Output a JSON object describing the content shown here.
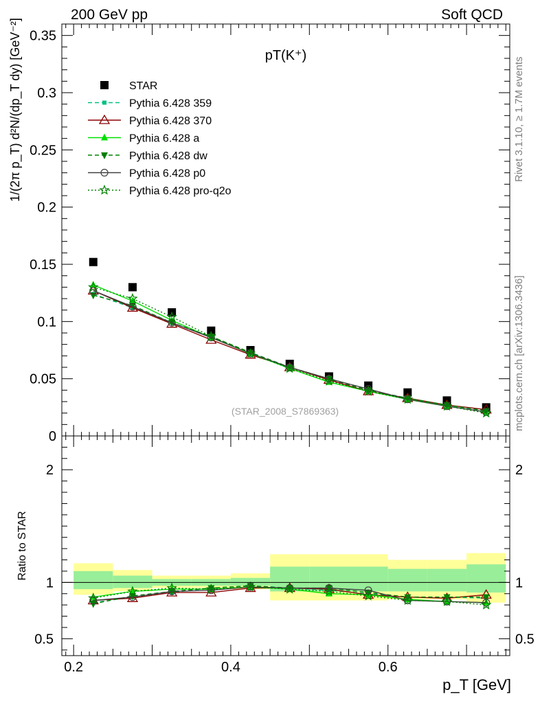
{
  "header": {
    "left": "200 GeV pp",
    "right": "Soft QCD",
    "plot_title": "pT(K⁺)",
    "watermark": "(STAR_2008_S7869363)",
    "side_top": "Rivet 3.1.10, ≥ 1.7M events",
    "side_bottom": "mcplots.cern.ch [arXiv:1306.3436]"
  },
  "axes": {
    "ylabel_top": "1/(2π p_T) d²N/(dp_T dy) [GeV⁻²]",
    "ylabel_ratio": "Ratio to STAR",
    "xlabel": "p_T [GeV]"
  },
  "colors": {
    "star": "#000000",
    "p359": "#00c080",
    "p370": "#8b0000",
    "pa": "#00e000",
    "pdw": "#008000",
    "pp0": "#404040",
    "pq2o": "#008000",
    "band_outer": "#ffff99",
    "band_inner": "#99ee99"
  },
  "chart_data": [
    {
      "type": "scatter",
      "title": "pT(K⁺)",
      "xlabel": "p_T [GeV]",
      "ylabel": "1/(2π p_T) d²N/(dp_T dy) [GeV⁻²]",
      "xlim": [
        0.185,
        0.755
      ],
      "ylim": [
        0,
        0.36
      ],
      "x_ticks": [
        "0.2",
        "0.4",
        "0.6"
      ],
      "y_ticks": [
        "0",
        "0.05",
        "0.1",
        "0.15",
        "0.2",
        "0.25",
        "0.3",
        "0.35"
      ],
      "x": [
        0.225,
        0.275,
        0.325,
        0.375,
        0.425,
        0.475,
        0.525,
        0.575,
        0.625,
        0.675,
        0.725
      ],
      "series": [
        {
          "name": "STAR",
          "marker": "square",
          "color_key": "star",
          "line": "none",
          "values": [
            0.152,
            0.13,
            0.108,
            0.092,
            0.075,
            0.063,
            0.052,
            0.044,
            0.038,
            0.031,
            0.025
          ]
        },
        {
          "name": "Pythia 6.428 359",
          "marker": "square-small",
          "color_key": "p359",
          "line": "dashed",
          "values": [
            0.124,
            0.112,
            0.099,
            0.086,
            0.073,
            0.06,
            0.049,
            0.04,
            0.033,
            0.027,
            0.022
          ]
        },
        {
          "name": "Pythia 6.428 370",
          "marker": "triangle-open",
          "color_key": "p370",
          "line": "solid",
          "values": [
            0.127,
            0.112,
            0.098,
            0.084,
            0.071,
            0.06,
            0.049,
            0.039,
            0.033,
            0.027,
            0.023
          ]
        },
        {
          "name": "Pythia 6.428 a",
          "marker": "triangle",
          "color_key": "pa",
          "line": "solid",
          "values": [
            0.132,
            0.118,
            0.101,
            0.086,
            0.072,
            0.059,
            0.047,
            0.039,
            0.032,
            0.026,
            0.021
          ]
        },
        {
          "name": "Pythia 6.428 dw",
          "marker": "triangle-down",
          "color_key": "pdw",
          "line": "dashed",
          "values": [
            0.123,
            0.114,
            0.099,
            0.087,
            0.073,
            0.06,
            0.05,
            0.04,
            0.033,
            0.027,
            0.022
          ]
        },
        {
          "name": "Pythia 6.428 p0",
          "marker": "circle-open",
          "color_key": "pp0",
          "line": "solid",
          "values": [
            0.127,
            0.113,
            0.099,
            0.086,
            0.072,
            0.06,
            0.05,
            0.041,
            0.032,
            0.026,
            0.021
          ]
        },
        {
          "name": "Pythia 6.428 pro-q2o",
          "marker": "star",
          "color_key": "pq2o",
          "line": "dotted",
          "values": [
            0.13,
            0.12,
            0.104,
            0.087,
            0.072,
            0.059,
            0.048,
            0.039,
            0.032,
            0.026,
            0.02
          ]
        }
      ]
    },
    {
      "type": "line",
      "title": "",
      "xlabel": "p_T [GeV]",
      "ylabel": "Ratio to STAR",
      "xlim": [
        0.185,
        0.755
      ],
      "ylim": [
        0.35,
        2.3
      ],
      "y_ticks": [
        "0.5",
        "1",
        "2"
      ],
      "x_bin_edges": [
        0.2,
        0.25,
        0.3,
        0.35,
        0.4,
        0.45,
        0.5,
        0.55,
        0.6,
        0.65,
        0.7,
        0.75
      ],
      "band_outer": [
        [
          0.89,
          1.17
        ],
        [
          0.92,
          1.11
        ],
        [
          0.95,
          1.06
        ],
        [
          0.95,
          1.06
        ],
        [
          0.94,
          1.08
        ],
        [
          0.84,
          1.25
        ],
        [
          0.84,
          1.25
        ],
        [
          0.84,
          1.25
        ],
        [
          0.85,
          1.2
        ],
        [
          0.85,
          1.2
        ],
        [
          0.82,
          1.26
        ]
      ],
      "band_inner": [
        [
          0.94,
          1.1
        ],
        [
          0.95,
          1.06
        ],
        [
          0.97,
          1.03
        ],
        [
          0.97,
          1.03
        ],
        [
          0.97,
          1.04
        ],
        [
          0.92,
          1.14
        ],
        [
          0.92,
          1.14
        ],
        [
          0.92,
          1.14
        ],
        [
          0.92,
          1.12
        ],
        [
          0.92,
          1.12
        ],
        [
          0.91,
          1.16
        ]
      ],
      "x": [
        0.225,
        0.275,
        0.325,
        0.375,
        0.425,
        0.475,
        0.525,
        0.575,
        0.625,
        0.675,
        0.725
      ],
      "series": [
        {
          "name": "Pythia 6.428 359",
          "color_key": "p359",
          "marker": "square-small",
          "line": "dashed",
          "values": [
            0.82,
            0.87,
            0.91,
            0.95,
            0.97,
            0.95,
            0.93,
            0.9,
            0.87,
            0.87,
            0.86
          ]
        },
        {
          "name": "Pythia 6.428 370",
          "color_key": "p370",
          "marker": "triangle-open",
          "line": "solid",
          "values": [
            0.84,
            0.86,
            0.91,
            0.91,
            0.95,
            0.95,
            0.94,
            0.89,
            0.87,
            0.86,
            0.89
          ]
        },
        {
          "name": "Pythia 6.428 a",
          "color_key": "pa",
          "marker": "triangle",
          "line": "solid",
          "values": [
            0.87,
            0.92,
            0.94,
            0.94,
            0.96,
            0.94,
            0.9,
            0.89,
            0.85,
            0.83,
            0.82
          ]
        },
        {
          "name": "Pythia 6.428 dw",
          "color_key": "pdw",
          "marker": "triangle-down",
          "line": "dashed",
          "values": [
            0.81,
            0.88,
            0.92,
            0.95,
            0.97,
            0.95,
            0.95,
            0.91,
            0.87,
            0.87,
            0.87
          ]
        },
        {
          "name": "Pythia 6.428 p0",
          "color_key": "pp0",
          "marker": "circle-open",
          "line": "solid",
          "values": [
            0.84,
            0.87,
            0.92,
            0.93,
            0.96,
            0.95,
            0.95,
            0.93,
            0.84,
            0.83,
            0.82
          ]
        },
        {
          "name": "Pythia 6.428 pro-q2o",
          "color_key": "pq2o",
          "marker": "star",
          "line": "dotted",
          "values": [
            0.86,
            0.92,
            0.95,
            0.94,
            0.96,
            0.94,
            0.92,
            0.88,
            0.84,
            0.83,
            0.8
          ]
        }
      ]
    }
  ]
}
